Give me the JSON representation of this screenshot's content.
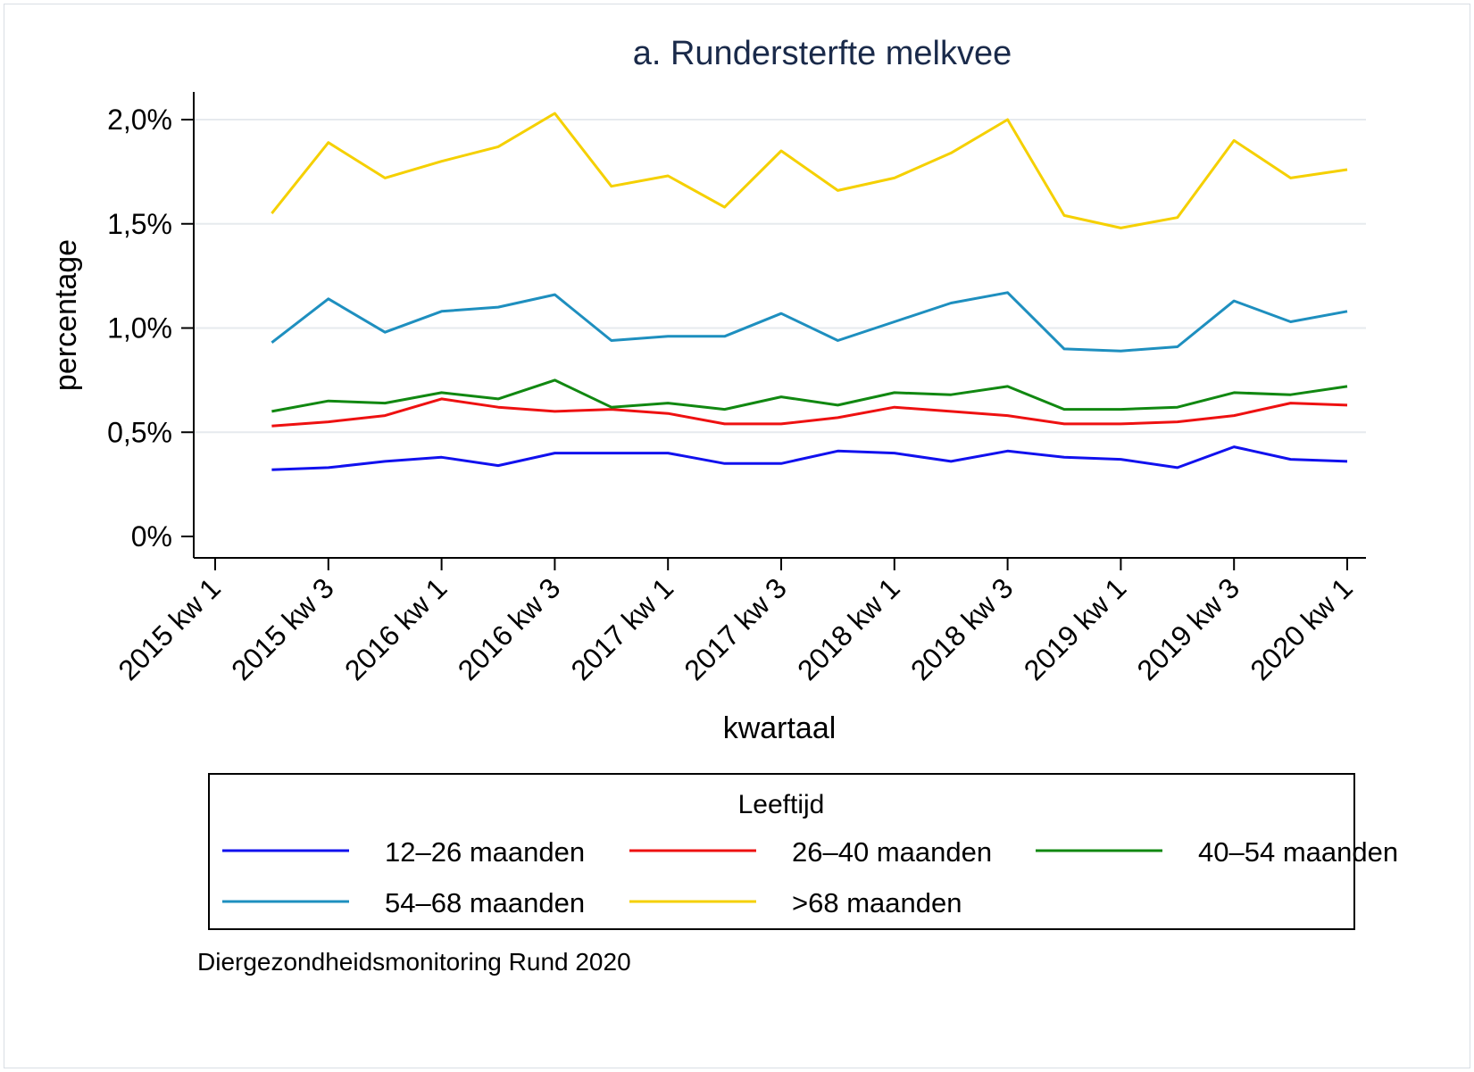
{
  "chart_data": {
    "type": "line",
    "title": "a. Rundersterfte melkvee",
    "xlabel": "kwartaal",
    "ylabel": "percentage",
    "x": [
      "2015 kw 2",
      "2015 kw 3",
      "2015 kw 4",
      "2016 kw 1",
      "2016 kw 2",
      "2016 kw 3",
      "2016 kw 4",
      "2017 kw 1",
      "2017 kw 2",
      "2017 kw 3",
      "2017 kw 4",
      "2018 kw 1",
      "2018 kw 2",
      "2018 kw 3",
      "2018 kw 4",
      "2019 kw 1",
      "2019 kw 2",
      "2019 kw 3",
      "2019 kw 4",
      "2020 kw 1"
    ],
    "xticks": [
      "2015 kw 1",
      "2015 kw 3",
      "2016 kw 1",
      "2016 kw 3",
      "2017 kw 1",
      "2017 kw 3",
      "2018 kw 1",
      "2018 kw 3",
      "2019 kw 1",
      "2019 kw 3",
      "2020 kw 1"
    ],
    "yticks": [
      {
        "value": 0.0,
        "label": "0%"
      },
      {
        "value": 0.5,
        "label": "0,5%"
      },
      {
        "value": 1.0,
        "label": "1,0%"
      },
      {
        "value": 1.5,
        "label": "1,5%"
      },
      {
        "value": 2.0,
        "label": "2,0%"
      }
    ],
    "ylim": [
      -0.11,
      2.13
    ],
    "grid": true,
    "legend": {
      "title": "Leeftijd",
      "placement": "bottom"
    },
    "series": [
      {
        "name": "12–26 maanden",
        "color": "#1111ee",
        "values": [
          0.32,
          0.33,
          0.36,
          0.38,
          0.34,
          0.4,
          0.4,
          0.4,
          0.35,
          0.35,
          0.41,
          0.4,
          0.36,
          0.41,
          0.38,
          0.37,
          0.33,
          0.43,
          0.37,
          0.36
        ]
      },
      {
        "name": "26–40 maanden",
        "color": "#ee1111",
        "values": [
          0.53,
          0.55,
          0.58,
          0.66,
          0.62,
          0.6,
          0.61,
          0.59,
          0.54,
          0.54,
          0.57,
          0.62,
          0.6,
          0.58,
          0.54,
          0.54,
          0.55,
          0.58,
          0.64,
          0.63
        ]
      },
      {
        "name": "40–54 maanden",
        "color": "#118811",
        "values": [
          0.6,
          0.65,
          0.64,
          0.69,
          0.66,
          0.75,
          0.62,
          0.64,
          0.61,
          0.67,
          0.63,
          0.69,
          0.68,
          0.72,
          0.61,
          0.61,
          0.62,
          0.69,
          0.68,
          0.72
        ]
      },
      {
        "name": "54–68 maanden",
        "color": "#1e8fbf",
        "values": [
          0.93,
          1.14,
          0.98,
          1.08,
          1.1,
          1.16,
          0.94,
          0.96,
          0.96,
          1.07,
          0.94,
          1.03,
          1.12,
          1.17,
          0.9,
          0.89,
          0.91,
          1.13,
          1.03,
          1.08
        ]
      },
      {
        "name": ">68 maanden",
        "color": "#f5d000",
        "values": [
          1.55,
          1.89,
          1.72,
          1.8,
          1.87,
          2.03,
          1.68,
          1.73,
          1.58,
          1.85,
          1.66,
          1.72,
          1.84,
          2.0,
          1.54,
          1.48,
          1.53,
          1.9,
          1.72,
          1.76
        ]
      }
    ]
  },
  "source_note": "Diergezondheidsmonitoring Rund 2020"
}
